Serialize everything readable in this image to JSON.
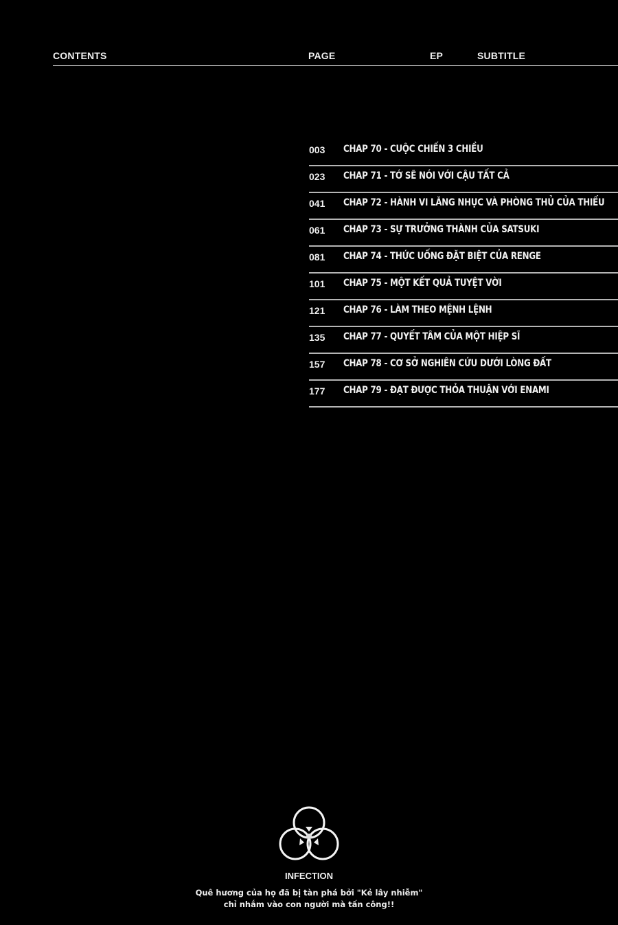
{
  "header": {
    "contents": "CONTENTS",
    "page": "PAGE",
    "ep": "EP",
    "subtitle": "SUBTITLE"
  },
  "toc": [
    {
      "page": "003",
      "title": "CHAP 70 - CUỘC CHIẾN 3 CHIỀU"
    },
    {
      "page": "023",
      "title": "CHAP 71 - TỚ SẼ NÓI VỚI CẬU TẤT CẢ"
    },
    {
      "page": "041",
      "title": "CHAP 72 - HÀNH VI LĂNG NHỤC VÀ PHÒNG THỦ CỦA THIẾU"
    },
    {
      "page": "061",
      "title": "CHAP 73 - SỰ TRƯỞNG THÀNH CỦA SATSUKI"
    },
    {
      "page": "081",
      "title": "CHAP 74 - THỨC UỐNG ĐẶT BIỆT CỦA RENGE"
    },
    {
      "page": "101",
      "title": "CHAP 75 - MỘT KẾT QUẢ TUYỆT VỜI"
    },
    {
      "page": "121",
      "title": "CHAP 76 - LÀM THEO MỆNH LỆNH"
    },
    {
      "page": "135",
      "title": "CHAP 77 - QUYẾT TÂM CỦA MỘT HIỆP SĨ"
    },
    {
      "page": "157",
      "title": "CHAP 78 - CƠ SỞ NGHIÊN CỨU DƯỚI LÒNG ĐẤT"
    },
    {
      "page": "177",
      "title": "CHAP 79 - ĐẠT ĐƯỢC THỎA THUẬN VỚI ENAMI"
    }
  ],
  "footer": {
    "icon": "biohazard-icon",
    "label": "INFECTION",
    "line1": "Quê hương của họ đã bị tàn phá bởi \"Kẻ lây nhiễm\"",
    "line2": "chỉ nhắm vào con người mà tấn công!!"
  }
}
